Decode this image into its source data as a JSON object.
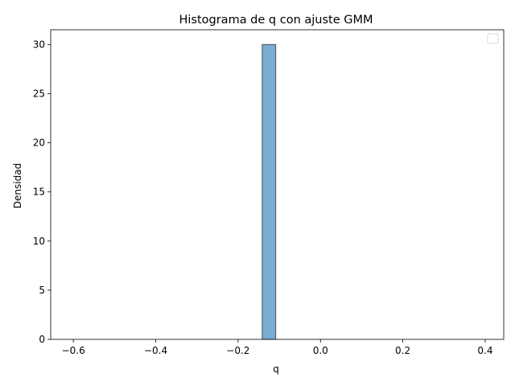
{
  "chart_data": {
    "type": "bar",
    "title": "Histograma de q con ajuste GMM",
    "xlabel": "q",
    "ylabel": "Densidad",
    "xlim": [
      -0.655,
      0.445
    ],
    "ylim": [
      0,
      31.5
    ],
    "xticks": [
      -0.6,
      -0.4,
      -0.2,
      0.0,
      0.2,
      0.4
    ],
    "xtick_labels": [
      "−0.6",
      "−0.4",
      "−0.2",
      "0.0",
      "0.2",
      "0.4"
    ],
    "yticks": [
      0,
      5,
      10,
      15,
      20,
      25,
      30
    ],
    "ytick_labels": [
      "0",
      "5",
      "10",
      "15",
      "20",
      "25",
      "30"
    ],
    "bars": [
      {
        "x0": -0.1415,
        "x1": -0.1085,
        "value": 30
      }
    ],
    "bar_color": "#1f77b4",
    "bar_edge_color": "#000000",
    "grid": false,
    "legend_placement": "top-right",
    "legend_entries": []
  }
}
